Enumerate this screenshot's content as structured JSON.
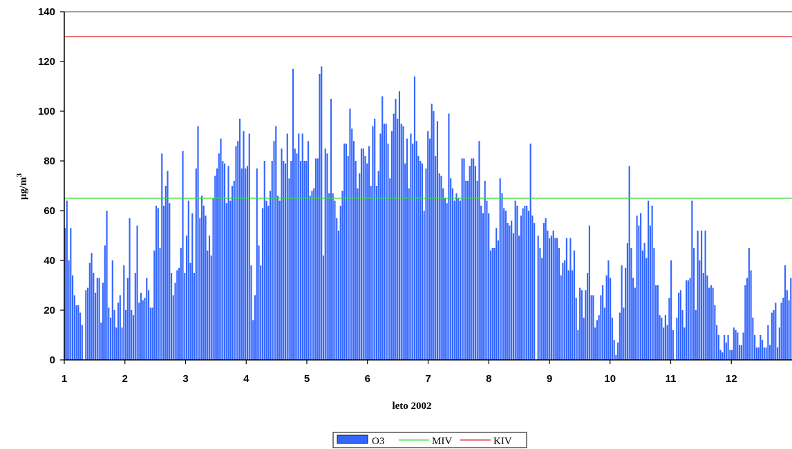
{
  "chart_data": {
    "type": "bar",
    "xlabel": "leto 2002",
    "ylabel": "μg/m",
    "ylabel_superscript": "3",
    "ylim": [
      0,
      140
    ],
    "y_ticks": [
      "0",
      "20",
      "40",
      "60",
      "80",
      "100",
      "120",
      "140"
    ],
    "x_tick_labels": [
      "1",
      "2",
      "3",
      "4",
      "5",
      "6",
      "7",
      "8",
      "9",
      "10",
      "11",
      "12"
    ],
    "grid": false,
    "legend_position": "bottom-center",
    "series": [
      {
        "name": "O3",
        "kind": "bar",
        "color": "#3366ff",
        "values": [
          53,
          64,
          40,
          53,
          34,
          26,
          22,
          22,
          19,
          14,
          0,
          28,
          29,
          39,
          43,
          35,
          27,
          33,
          33,
          15,
          31,
          46,
          60,
          21,
          17,
          40,
          20,
          13,
          23,
          26,
          13,
          38,
          20,
          33,
          57,
          20,
          18,
          35,
          54,
          23,
          27,
          24,
          25,
          33,
          28,
          21,
          21,
          44,
          62,
          61,
          45,
          83,
          62,
          70,
          76,
          63,
          35,
          26,
          31,
          36,
          37,
          45,
          84,
          35,
          50,
          64,
          39,
          59,
          35,
          77,
          94,
          57,
          66,
          62,
          58,
          44,
          50,
          42,
          65,
          74,
          77,
          83,
          89,
          80,
          79,
          63,
          78,
          64,
          70,
          72,
          86,
          88,
          97,
          77,
          92,
          77,
          78,
          91,
          38,
          16,
          26,
          77,
          46,
          38,
          61,
          80,
          64,
          62,
          68,
          80,
          88,
          94,
          66,
          64,
          85,
          80,
          79,
          91,
          73,
          80,
          117,
          85,
          83,
          91,
          80,
          91,
          80,
          80,
          88,
          66,
          68,
          69,
          81,
          81,
          115,
          118,
          42,
          85,
          83,
          67,
          105,
          67,
          64,
          57,
          52,
          62,
          68,
          87,
          87,
          82,
          101,
          93,
          88,
          80,
          69,
          75,
          85,
          85,
          82,
          79,
          86,
          70,
          94,
          97,
          70,
          76,
          91,
          106,
          95,
          95,
          87,
          73,
          92,
          99,
          105,
          97,
          108,
          95,
          94,
          79,
          89,
          69,
          91,
          87,
          114,
          88,
          82,
          80,
          79,
          60,
          77,
          92,
          89,
          103,
          100,
          82,
          96,
          75,
          74,
          69,
          65,
          63,
          99,
          73,
          69,
          64,
          67,
          65,
          64,
          81,
          81,
          72,
          72,
          78,
          81,
          81,
          78,
          72,
          88,
          62,
          59,
          72,
          64,
          59,
          44,
          45,
          45,
          53,
          48,
          73,
          67,
          61,
          60,
          55,
          54,
          56,
          51,
          64,
          62,
          50,
          58,
          61,
          62,
          62,
          60,
          87,
          58,
          55,
          0,
          50,
          45,
          41,
          55,
          57,
          52,
          49,
          50,
          52,
          49,
          49,
          45,
          34,
          39,
          40,
          49,
          36,
          49,
          36,
          44,
          25,
          12,
          29,
          28,
          17,
          28,
          35,
          54,
          26,
          26,
          13,
          16,
          18,
          26,
          30,
          21,
          34,
          40,
          33,
          17,
          8,
          2,
          7,
          19,
          38,
          21,
          37,
          47,
          78,
          45,
          33,
          29,
          58,
          54,
          59,
          44,
          47,
          41,
          64,
          54,
          62,
          45,
          30,
          30,
          18,
          17,
          13,
          18,
          14,
          25,
          40,
          12,
          0,
          17,
          27,
          28,
          20,
          13,
          32,
          32,
          33,
          64,
          45,
          20,
          52,
          40,
          52,
          35,
          52,
          34,
          29,
          30,
          29,
          22,
          14,
          10,
          4,
          3,
          10,
          7,
          10,
          4,
          4,
          13,
          12,
          11,
          6,
          6,
          11,
          30,
          33,
          45,
          36,
          17,
          10,
          5,
          5,
          10,
          8,
          5,
          5,
          14,
          6,
          19,
          20,
          23,
          5,
          13,
          23,
          25,
          38,
          28,
          24,
          33
        ]
      },
      {
        "name": "MIV",
        "kind": "line",
        "color": "#33dd33",
        "value": 65
      },
      {
        "name": "KIV",
        "kind": "line",
        "color": "#dd2222",
        "value": 130
      }
    ]
  }
}
